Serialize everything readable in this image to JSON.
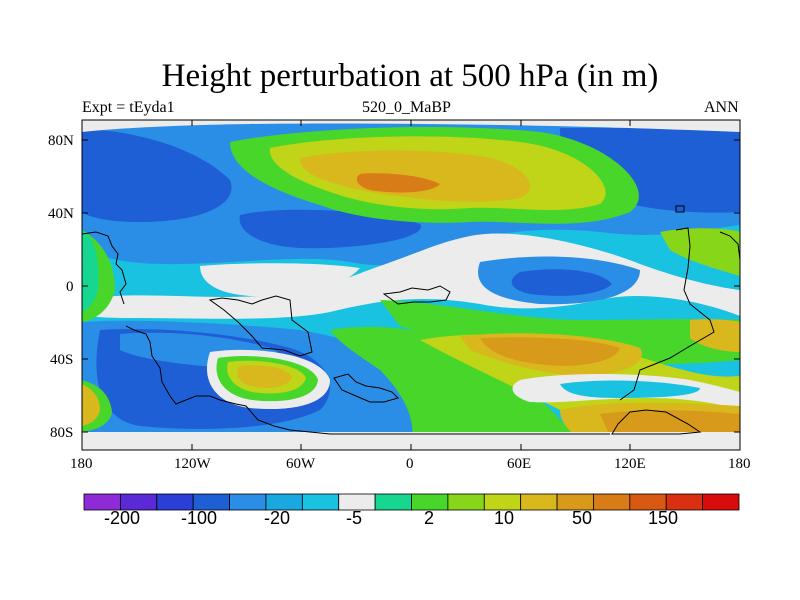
{
  "figure": {
    "title": "Height perturbation at 500 hPa (in m)",
    "left_string": "Expt = tEyda1",
    "center_string": "520_0_MaBP",
    "right_string": "ANN"
  },
  "axes": {
    "lat_labels": [
      "80N",
      "40N",
      "0",
      "40S",
      "80S"
    ],
    "lon_labels": [
      "180",
      "120W",
      "60W",
      "0",
      "60E",
      "120E",
      "180"
    ]
  },
  "colorbar": {
    "colors": [
      "#8e2bd6",
      "#5b2ad6",
      "#2a3fd6",
      "#1f5fd6",
      "#2b8ee6",
      "#1aa8e0",
      "#18c2e0",
      "#ececec",
      "#16d690",
      "#49d62b",
      "#88d61a",
      "#c0d418",
      "#d8b81c",
      "#d89a1a",
      "#d87c18",
      "#d85a12",
      "#d83010",
      "#d80c0c"
    ],
    "labels": [
      "-200",
      "-100",
      "-20",
      "-5",
      "2",
      "10",
      "50",
      "150"
    ]
  },
  "palette": {
    "neutral": "#ececec",
    "blue_dark": "#1f5fd6",
    "blue": "#2b8ee6",
    "cyan": "#18c2e0",
    "teal": "#16d690",
    "green": "#49d62b",
    "yellowgreen": "#c0d418",
    "gold": "#d8b81c",
    "orange": "#d89a1a",
    "deep_orange": "#d87c18"
  }
}
